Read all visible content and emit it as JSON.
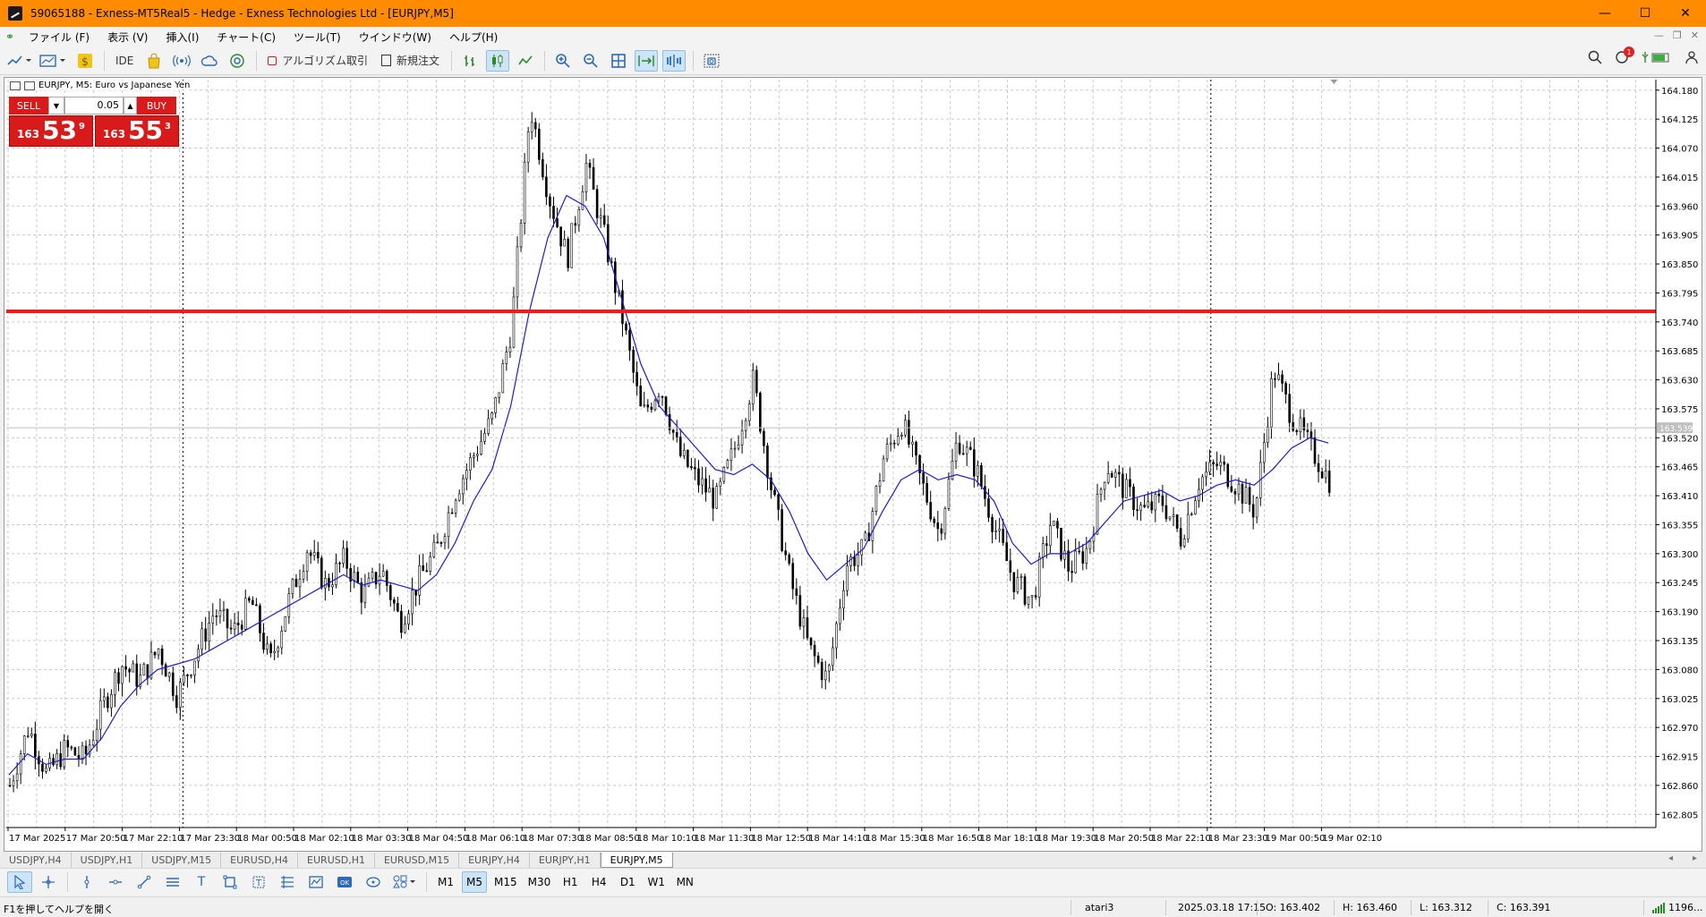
{
  "window": {
    "title": "59065188 - Exness-MT5Real5 - Hedge - Exness Technologies Ltd - [EURJPY,M5]",
    "minimize": "—",
    "maximize": "☐",
    "close": "✕"
  },
  "menu": {
    "items": [
      "ファイル (F)",
      "表示 (V)",
      "挿入(I)",
      "チャート(C)",
      "ツール(T)",
      "ウインドウ(W)",
      "ヘルプ(H)"
    ]
  },
  "toolbar": {
    "ide_label": "IDE",
    "algo_label": "アルゴリズム取引",
    "new_order_label": "新規注文",
    "notification_count": "1"
  },
  "chart_header": {
    "symbol_line": "EURJPY, M5:  Euro vs Japanese Yen"
  },
  "one_click": {
    "sell_label": "SELL",
    "buy_label": "BUY",
    "lot": "0.05",
    "sell_price": {
      "prefix": "163",
      "big": "53",
      "sup": "9"
    },
    "buy_price": {
      "prefix": "163",
      "big": "55",
      "sup": "3"
    }
  },
  "chart_data": {
    "type": "candlestick",
    "symbol": "EURJPY",
    "timeframe": "M5",
    "y_ticks": [
      "164.180",
      "164.125",
      "164.070",
      "164.015",
      "163.960",
      "163.905",
      "163.850",
      "163.795",
      "163.740",
      "163.685",
      "163.630",
      "163.575",
      "163.520",
      "163.465",
      "163.410",
      "163.355",
      "163.300",
      "163.245",
      "163.190",
      "163.135",
      "163.080",
      "163.025",
      "162.970",
      "162.915",
      "162.860",
      "162.805"
    ],
    "ylim": [
      162.78,
      164.2
    ],
    "x_ticks": [
      "17 Mar 2025",
      "17 Mar 20:50",
      "17 Mar 22:10",
      "17 Mar 23:30",
      "18 Mar 00:50",
      "18 Mar 02:10",
      "18 Mar 03:30",
      "18 Mar 04:50",
      "18 Mar 06:10",
      "18 Mar 07:30",
      "18 Mar 08:50",
      "18 Mar 10:10",
      "18 Mar 11:30",
      "18 Mar 12:50",
      "18 Mar 14:10",
      "18 Mar 15:30",
      "18 Mar 16:50",
      "18 Mar 18:10",
      "18 Mar 19:30",
      "18 Mar 20:50",
      "18 Mar 22:10",
      "18 Mar 23:30",
      "19 Mar 00:50",
      "19 Mar 02:10"
    ],
    "price_path": [
      162.86,
      162.97,
      162.88,
      162.93,
      162.91,
      163.01,
      163.09,
      163.06,
      163.12,
      163.03,
      163.11,
      163.19,
      163.15,
      163.21,
      163.09,
      163.21,
      163.31,
      163.24,
      163.29,
      163.22,
      163.27,
      163.17,
      163.25,
      163.31,
      163.42,
      163.49,
      163.56,
      163.73,
      164.15,
      163.98,
      163.86,
      164.04,
      163.9,
      163.74,
      163.56,
      163.62,
      163.49,
      163.44,
      163.4,
      163.5,
      163.63,
      163.42,
      163.25,
      163.12,
      163.06,
      163.28,
      163.31,
      163.48,
      163.55,
      163.44,
      163.34,
      163.52,
      163.46,
      163.35,
      163.25,
      163.21,
      163.36,
      163.27,
      163.31,
      163.47,
      163.42,
      163.38,
      163.4,
      163.33,
      163.44,
      163.47,
      163.43,
      163.38,
      163.65,
      163.56,
      163.5,
      163.44
    ],
    "moving_average": {
      "type": "MA",
      "color": "#1e1ec8",
      "values": [
        162.88,
        162.92,
        162.9,
        162.91,
        162.91,
        162.95,
        163.01,
        163.05,
        163.08,
        163.09,
        163.1,
        163.12,
        163.14,
        163.16,
        163.18,
        163.2,
        163.22,
        163.24,
        163.26,
        163.24,
        163.25,
        163.24,
        163.23,
        163.26,
        163.32,
        163.4,
        163.46,
        163.58,
        163.76,
        163.9,
        163.98,
        163.96,
        163.9,
        163.78,
        163.66,
        163.58,
        163.54,
        163.5,
        163.46,
        163.45,
        163.47,
        163.44,
        163.38,
        163.3,
        163.25,
        163.28,
        163.31,
        163.38,
        163.44,
        163.46,
        163.44,
        163.45,
        163.44,
        163.4,
        163.32,
        163.28,
        163.3,
        163.3,
        163.32,
        163.36,
        163.4,
        163.41,
        163.42,
        163.4,
        163.41,
        163.43,
        163.44,
        163.43,
        163.46,
        163.5,
        163.52,
        163.51
      ]
    },
    "horizontal_line": {
      "value": 163.76,
      "color": "#ee1c1c"
    },
    "bid_line": {
      "value": 163.539,
      "label": "163.539"
    },
    "period_separators": [
      "17 Mar 23:30",
      "18 Mar 23:30"
    ],
    "grid": true,
    "colors": {
      "candle": "#000000",
      "background": "#ffffff",
      "grid": "#c8c8c8"
    }
  },
  "tabs": [
    "USDJPY,H4",
    "USDJPY,H1",
    "USDJPY,M15",
    "EURUSD,H4",
    "EURUSD,H1",
    "EURUSD,M15",
    "EURJPY,H4",
    "EURJPY,H1",
    "EURJPY,M5"
  ],
  "active_tab": "EURJPY,M5",
  "timeframes": [
    "M1",
    "M5",
    "M15",
    "M30",
    "H1",
    "H4",
    "D1",
    "W1",
    "MN"
  ],
  "active_timeframe": "M5",
  "status": {
    "help": "F1を押してヘルプを開く",
    "profile": "atari3",
    "time": "2025.03.18 17:15",
    "open": "O: 163.402",
    "high": "H: 163.460",
    "low": "L: 163.312",
    "close": "C: 163.391",
    "connection": "1196..."
  }
}
